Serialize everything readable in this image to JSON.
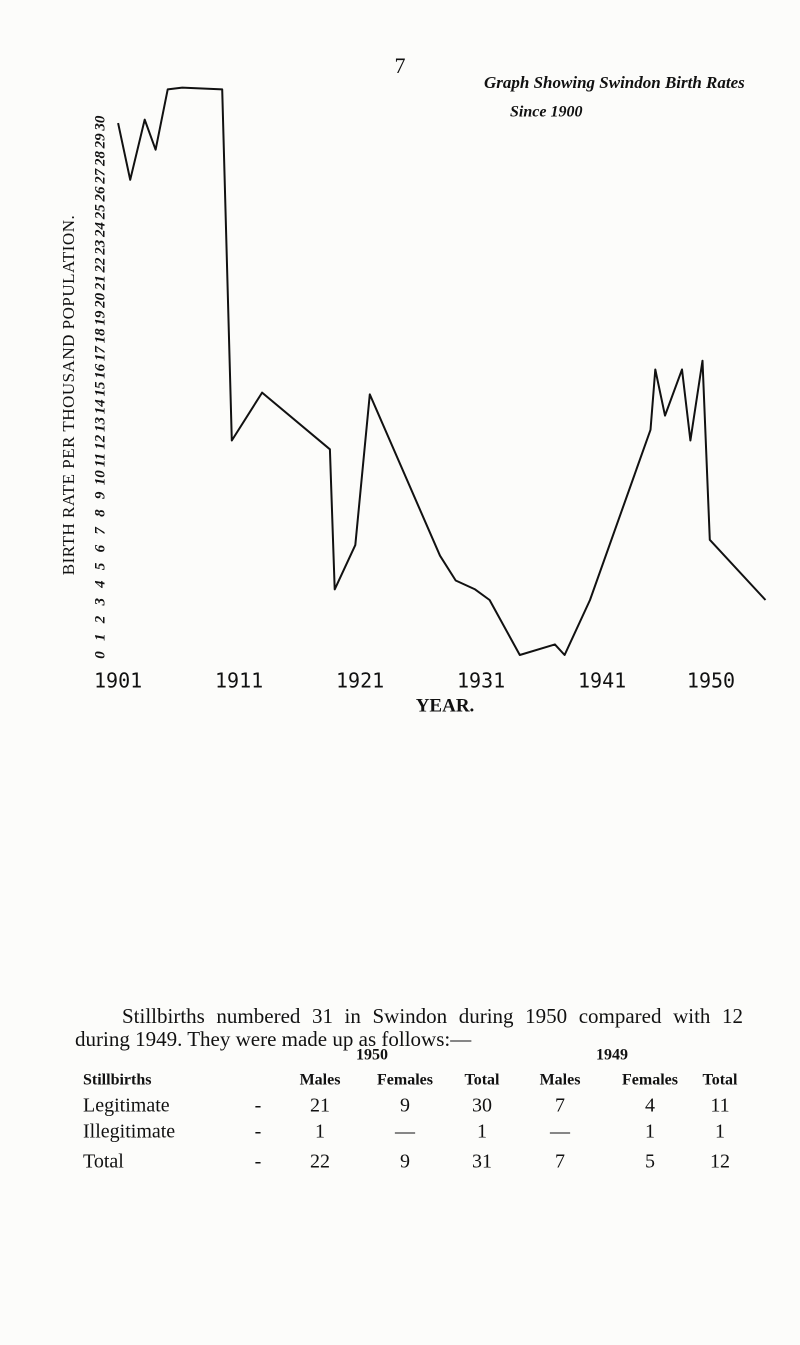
{
  "page_number": "7",
  "chart_data": {
    "type": "line",
    "title": "Graph Showing Swindon Birth Rates",
    "subtitle": "Since 1900",
    "x_label": "YEAR.",
    "y_label": "BIRTH RATE PER THOUSAND POPULATION.",
    "x": [
      1901,
      1902,
      1903.2,
      1904.1,
      1905.1,
      1906.3,
      1909.6,
      1910.4,
      1912.9,
      1918.5,
      1918.9,
      1920.6,
      1921.8,
      1927.6,
      1928.9,
      1930.5,
      1931.7,
      1934.2,
      1937.1,
      1937.9,
      1940,
      1945,
      1945.4,
      1946.2,
      1947.6,
      1948.3,
      1949.3,
      1949.9,
      1954.5
    ],
    "values": [
      30,
      26.8,
      30.2,
      28.5,
      31.9,
      32,
      31.9,
      12.1,
      14.8,
      11.6,
      3.7,
      6.2,
      14.7,
      5.6,
      4.2,
      3.7,
      3.1,
      0,
      0.6,
      0,
      3.1,
      12.7,
      16.1,
      13.5,
      16.1,
      12.1,
      16.6,
      6.5,
      3.1
    ],
    "color": "#111111",
    "xlim": [
      1900,
      1955
    ],
    "xticks": [
      1901,
      1911,
      1921,
      1931,
      1941,
      1950
    ],
    "ylim": [
      0,
      32
    ],
    "yticks": [
      0,
      1,
      2,
      3,
      4,
      5,
      6,
      7,
      8,
      9,
      10,
      11,
      12,
      13,
      14,
      15,
      16,
      17,
      18,
      19,
      20,
      21,
      22,
      23,
      24,
      25,
      26,
      27,
      28,
      29,
      30
    ],
    "grid": false
  },
  "paragraph": "Stillbirths numbered 31 in Swindon during 1950 compared with 12 during 1949. They were made up as follows:—",
  "table": {
    "groups": [
      "1950",
      "1949"
    ],
    "header": [
      "Stillbirths",
      "Males",
      "Females",
      "Total",
      "Males",
      "Females",
      "Total"
    ],
    "rows": [
      [
        "Legitimate",
        "-",
        21,
        9,
        30,
        7,
        4,
        11
      ],
      [
        "Illegitimate",
        "-",
        1,
        "—",
        1,
        "—",
        1,
        1
      ],
      [
        "Total",
        "-",
        22,
        9,
        31,
        7,
        5,
        12
      ]
    ]
  }
}
